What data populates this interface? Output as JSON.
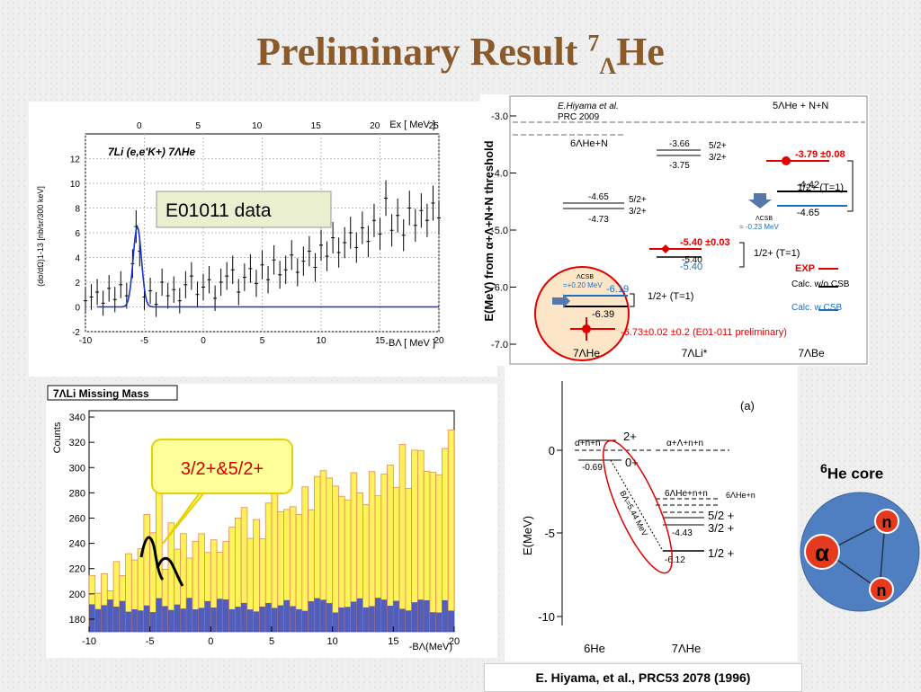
{
  "title": {
    "main": "Preliminary Result",
    "sup": "7",
    "sub": "Λ",
    "tail": "He"
  },
  "chart_data": [
    {
      "type": "scatter",
      "panel": "E01011 spectrum",
      "title": "7Li (e,e'K+) 7ΛHe",
      "xlabel": "-BΛ [ MeV ]",
      "top_xlabel": "Ex [ MeV ]",
      "ylabel": "(dσ/dΩ)1-13 [nb/sr/300 keV]",
      "xlim": [
        -10,
        20
      ],
      "ylim": [
        -2,
        14
      ],
      "xticks": [
        "-10",
        "-5",
        "0",
        "5",
        "10",
        "15",
        "20"
      ],
      "top_ticks": [
        "0",
        "5",
        "10",
        "15",
        "20",
        "25"
      ],
      "yticks": [
        "-2",
        "0",
        "2",
        "4",
        "6",
        "8",
        "10",
        "12"
      ],
      "label_box": "E01011 data",
      "points": [
        [
          -10,
          0.5
        ],
        [
          -9.5,
          0.8
        ],
        [
          -9,
          1.2
        ],
        [
          -8.5,
          0.3
        ],
        [
          -8,
          1.5
        ],
        [
          -7.5,
          0.6
        ],
        [
          -7,
          1.8
        ],
        [
          -6.5,
          0.9
        ],
        [
          -6,
          3.5
        ],
        [
          -5.7,
          6.5
        ],
        [
          -5.4,
          4.5
        ],
        [
          -5,
          0.8
        ],
        [
          -4.5,
          1.3
        ],
        [
          -4,
          0.2
        ],
        [
          -3.5,
          2.0
        ],
        [
          -3,
          0.9
        ],
        [
          -2.5,
          1.4
        ],
        [
          -2,
          0.5
        ],
        [
          -1.5,
          1.8
        ],
        [
          -1,
          2.5
        ],
        [
          -0.5,
          1.0
        ],
        [
          0,
          1.6
        ],
        [
          0.5,
          2.2
        ],
        [
          1,
          0.7
        ],
        [
          1.5,
          2.0
        ],
        [
          2,
          2.5
        ],
        [
          2.5,
          3.0
        ],
        [
          3,
          1.2
        ],
        [
          3.5,
          2.4
        ],
        [
          4,
          3.1
        ],
        [
          4.5,
          1.9
        ],
        [
          5,
          3.4
        ],
        [
          5.5,
          2.2
        ],
        [
          6,
          3.8
        ],
        [
          6.5,
          2.6
        ],
        [
          7,
          3.0
        ],
        [
          7.5,
          4.2
        ],
        [
          8,
          2.8
        ],
        [
          8.5,
          3.7
        ],
        [
          9,
          4.5
        ],
        [
          9.5,
          3.2
        ],
        [
          10,
          5.0
        ],
        [
          10.5,
          4.1
        ],
        [
          11,
          5.6
        ],
        [
          11.5,
          4.4
        ],
        [
          12,
          5.2
        ],
        [
          12.5,
          6.0
        ],
        [
          13,
          4.8
        ],
        [
          13.5,
          6.4
        ],
        [
          14,
          5.3
        ],
        [
          14.5,
          7.0
        ],
        [
          15,
          5.9
        ],
        [
          15.5,
          8.8
        ],
        [
          16,
          6.2
        ],
        [
          16.5,
          7.4
        ],
        [
          17,
          5.8
        ],
        [
          17.5,
          8.0
        ],
        [
          18,
          6.6
        ],
        [
          18.5,
          7.8
        ],
        [
          19,
          7.0
        ],
        [
          19.5,
          8.4
        ],
        [
          20,
          7.2
        ]
      ]
    },
    {
      "type": "bar",
      "panel": "Missing mass",
      "title": "7ΛLi Missing Mass",
      "xlabel": "-BΛ(MeV)",
      "ylabel": "Counts",
      "xlim": [
        -10,
        20
      ],
      "ylim": [
        170,
        345
      ],
      "xticks": [
        "-10",
        "-5",
        "0",
        "5",
        "10",
        "15",
        "20"
      ],
      "yticks": [
        "180",
        "200",
        "220",
        "240",
        "260",
        "280",
        "300",
        "320",
        "340"
      ],
      "callout": "3/2+&5/2+",
      "series": []
    }
  ],
  "levels_top": {
    "header1": "E.Hiyama et al.",
    "header2": "PRC 2009",
    "ylabel": "E(MeV) from α+Λ+N+N threshold",
    "yticks": [
      "-3.0",
      "-4.0",
      "-5.0",
      "-6.0",
      "-7.0"
    ],
    "threshold": "5ΛHe + N+N",
    "he6n": "6ΛHe+N",
    "v366": "-3.66",
    "v375": "-3.75",
    "j52a": "5/2+",
    "j32a": "3/2+",
    "v465": "-4.65",
    "v473": "-4.73",
    "j52b": "5/2+",
    "j32b": "3/2+",
    "exp379": "-3.79 ±0.08",
    "v442": "-4.42",
    "v465b": "-4.65",
    "csb023": "ΛCSB",
    "csb023v": "= -0.23 MeV",
    "t1a": "1/2+ (T=1)",
    "exp540": "-5.40 ±0.03",
    "v540b": "-5.40",
    "v540c": "-5.40",
    "t1b": "1/2+ (T=1)",
    "csb020": "ΛCSB",
    "csb020v": "=+0.20 MeV",
    "v619": "-6.19",
    "v639": "-6.39",
    "t1c": "1/2+ (T=1)",
    "exp673": "-6.73±0.02 ±0.2 (E01-011 preliminary)",
    "legend": [
      "EXP",
      "Calc. w/o CSB",
      "Calc. w CSB"
    ],
    "legend_colors": [
      "#e00000",
      "#000000",
      "#1a6fc0"
    ],
    "nuclei": [
      "7ΛHe",
      "7ΛLi*",
      "7ΛBe"
    ]
  },
  "levels_bottom": {
    "tag": "(a)",
    "ylabel": "E(MeV)",
    "yticks": [
      "0",
      "-5",
      "-10"
    ],
    "l1": "α+n+n",
    "l1v": "-0.69",
    "s2": "2+",
    "s0": "0+",
    "thr": "α+Λ+n+n",
    "l2": "6ΛHe+n+n",
    "l2b": "6ΛHe+n",
    "v443": "-4.43",
    "v612": "-6.12",
    "j52": "5/2 +",
    "j32": "3/2 +",
    "j12": "1/2 +",
    "ba": "BΛ=5.44 MeV",
    "xlabels": [
      "6He",
      "7ΛHe"
    ]
  },
  "core": {
    "label_sup": "6",
    "label": "He core",
    "alpha": "α",
    "n1": "n",
    "n2": "n"
  },
  "reference": "E. Hiyama, et al., PRC53 2078 (1996)"
}
